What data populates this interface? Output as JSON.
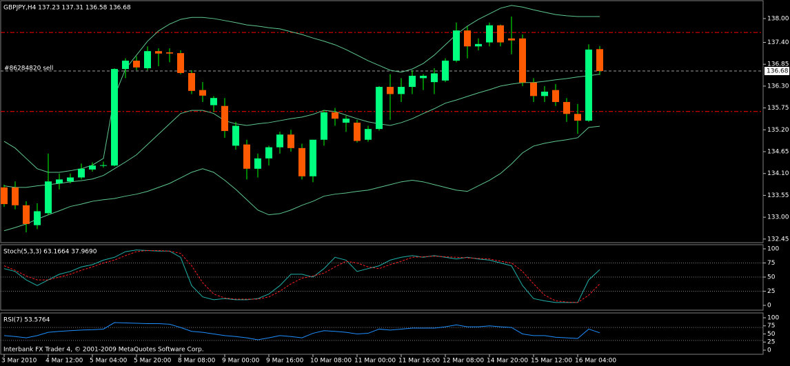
{
  "chart_data": [
    {
      "type": "candlestick",
      "title": "GBPJPY,H4  137.23 137.31 136.58 136.68",
      "up_color": "#00ff7f",
      "down_color": "#ff5a00",
      "wick_color": "#00ff00",
      "open": [
        133.75,
        133.75,
        133.3,
        132.8,
        133.1,
        133.85,
        133.9,
        134.0,
        134.2,
        134.3,
        134.3,
        136.73,
        136.94,
        136.75,
        137.18,
        137.15,
        137.13,
        136.63,
        136.2,
        135.82,
        135.8,
        134.8,
        134.83,
        134.22,
        134.48,
        134.76,
        135.08,
        134.74,
        134.03,
        134.95,
        135.64,
        135.38,
        135.38,
        134.95,
        135.22,
        136.28,
        136.1,
        136.28,
        136.5,
        136.4,
        136.44,
        136.94,
        137.7,
        137.3,
        137.4,
        137.83,
        137.5,
        137.5,
        136.39,
        136.05,
        136.2,
        135.9,
        135.6,
        135.43,
        137.23
      ],
      "high": [
        133.82,
        133.9,
        133.4,
        133.35,
        134.6,
        134.1,
        134.1,
        134.35,
        134.38,
        134.4,
        136.75,
        137.0,
        137.05,
        137.3,
        137.25,
        137.25,
        137.2,
        136.7,
        136.4,
        136.05,
        136.0,
        135.4,
        134.95,
        134.6,
        134.8,
        135.15,
        135.2,
        134.85,
        134.95,
        135.7,
        135.75,
        135.55,
        135.45,
        135.3,
        136.3,
        136.6,
        136.5,
        136.7,
        136.6,
        136.75,
        137.0,
        137.9,
        137.8,
        137.5,
        137.9,
        137.85,
        138.05,
        137.6,
        136.5,
        136.3,
        136.35,
        136.0,
        135.85,
        137.35,
        137.31
      ],
      "low": [
        133.26,
        133.2,
        132.62,
        132.7,
        133.05,
        133.7,
        133.85,
        133.95,
        134.15,
        134.25,
        134.28,
        136.5,
        136.7,
        136.7,
        136.8,
        136.9,
        136.6,
        136.1,
        135.9,
        135.65,
        135.0,
        134.7,
        133.95,
        134.0,
        134.3,
        134.6,
        134.65,
        133.95,
        133.88,
        134.8,
        135.3,
        135.15,
        134.88,
        134.9,
        135.18,
        135.45,
        135.9,
        136.1,
        136.2,
        136.1,
        136.4,
        136.9,
        137.0,
        137.2,
        137.3,
        137.3,
        137.1,
        136.3,
        135.9,
        135.9,
        135.8,
        135.4,
        135.1,
        135.4,
        136.58
      ],
      "close": [
        133.33,
        133.3,
        132.83,
        133.15,
        133.9,
        133.95,
        134.0,
        134.22,
        134.3,
        134.31,
        136.73,
        136.94,
        136.77,
        137.18,
        137.12,
        137.12,
        136.63,
        136.18,
        136.06,
        136.0,
        135.17,
        135.3,
        134.22,
        134.48,
        134.76,
        135.08,
        134.74,
        134.03,
        134.95,
        135.64,
        135.48,
        135.48,
        134.92,
        135.22,
        136.28,
        136.1,
        136.28,
        136.56,
        136.56,
        136.62,
        136.94,
        137.7,
        137.3,
        137.36,
        137.83,
        137.4,
        137.45,
        136.39,
        136.05,
        136.16,
        135.9,
        135.6,
        135.43,
        137.22,
        136.68
      ],
      "series": [
        {
          "color": "#5fc88f",
          "values": [
            134.91,
            134.74,
            134.48,
            134.22,
            134.13,
            134.13,
            134.17,
            134.22,
            134.31,
            134.48,
            136.04,
            136.73,
            137.08,
            137.43,
            137.69,
            137.86,
            137.98,
            138.03,
            138.03,
            138.0,
            137.95,
            137.9,
            137.84,
            137.81,
            137.77,
            137.74,
            137.67,
            137.6,
            137.51,
            137.43,
            137.34,
            137.22,
            137.08,
            136.94,
            136.82,
            136.7,
            136.65,
            136.73,
            136.87,
            137.08,
            137.34,
            137.6,
            137.81,
            137.98,
            138.12,
            138.26,
            138.33,
            138.29,
            138.22,
            138.16,
            138.1,
            138.07,
            138.05,
            138.05,
            138.05
          ]
        },
        {
          "color": "#5fc88f",
          "values": [
            133.79,
            133.75,
            133.75,
            133.79,
            133.82,
            133.85,
            133.89,
            133.92,
            133.96,
            134.05,
            134.22,
            134.39,
            134.57,
            134.83,
            135.09,
            135.35,
            135.61,
            135.69,
            135.69,
            135.61,
            135.43,
            135.35,
            135.31,
            135.35,
            135.38,
            135.43,
            135.48,
            135.52,
            135.59,
            135.69,
            135.66,
            135.57,
            135.48,
            135.4,
            135.35,
            135.31,
            135.38,
            135.48,
            135.61,
            135.73,
            135.87,
            135.95,
            136.04,
            136.13,
            136.21,
            136.3,
            136.35,
            136.39,
            136.39,
            136.42,
            136.46,
            136.49,
            136.53,
            136.56,
            136.6
          ]
        },
        {
          "color": "#5fc88f",
          "values": [
            132.66,
            132.74,
            132.83,
            132.95,
            133.06,
            133.16,
            133.27,
            133.33,
            133.4,
            133.44,
            133.47,
            133.53,
            133.58,
            133.65,
            133.75,
            133.85,
            133.99,
            134.13,
            134.22,
            134.13,
            133.93,
            133.7,
            133.44,
            133.18,
            133.06,
            133.09,
            133.18,
            133.3,
            133.4,
            133.53,
            133.58,
            133.61,
            133.65,
            133.68,
            133.75,
            133.82,
            133.89,
            133.93,
            133.89,
            133.82,
            133.75,
            133.68,
            133.65,
            133.79,
            133.93,
            134.1,
            134.34,
            134.62,
            134.79,
            134.86,
            134.91,
            134.95,
            135.0,
            135.26,
            135.29
          ]
        }
      ],
      "hlines": [
        {
          "value": 137.65,
          "color": "#ff0000",
          "dash": "6 3 2 3"
        },
        {
          "value": 135.66,
          "color": "#ff0000",
          "dash": "6 3 2 3"
        },
        {
          "value": 136.68,
          "color": "#a0a0a0",
          "dash": "4 3",
          "label": "#86284820 sell"
        }
      ],
      "price_label": 136.68,
      "ylim": [
        132.36,
        138.45
      ],
      "yticks": [
        {
          "value": 138,
          "label": "138.00"
        },
        {
          "value": 137.4,
          "label": "137.40"
        },
        136.85,
        {
          "value": 136.3,
          "label": "136.30"
        },
        135.75,
        {
          "value": 135.2,
          "label": "135.20"
        },
        134.65,
        {
          "value": 134.1,
          "label": "134.10"
        },
        133.55,
        {
          "value": 133,
          "label": "133.00"
        },
        132.45
      ]
    },
    {
      "type": "line",
      "title": "Stoch(5,3,3) 63.1664 37.9690",
      "series": [
        {
          "color": "#20b2aa",
          "values": [
            65,
            60,
            45,
            35,
            45,
            55,
            60,
            68,
            72,
            80,
            85,
            95,
            98,
            97,
            96,
            96,
            85,
            35,
            15,
            10,
            12,
            10,
            10,
            12,
            20,
            35,
            55,
            55,
            50,
            65,
            85,
            80,
            60,
            65,
            70,
            80,
            85,
            88,
            85,
            88,
            85,
            82,
            85,
            82,
            80,
            75,
            70,
            35,
            12,
            8,
            5,
            5,
            5,
            45,
            63.1664
          ]
        },
        {
          "color": "#ff2020",
          "dash": "3 2",
          "values": [
            70,
            62,
            52,
            45,
            45,
            50,
            55,
            62,
            68,
            75,
            80,
            88,
            95,
            97,
            97,
            96,
            92,
            70,
            40,
            20,
            13,
            11,
            11,
            11,
            15,
            25,
            38,
            48,
            52,
            57,
            68,
            78,
            75,
            68,
            65,
            72,
            78,
            85,
            86,
            87,
            86,
            85,
            84,
            83,
            82,
            78,
            75,
            60,
            38,
            18,
            8,
            6,
            5,
            18,
            37.969
          ]
        }
      ],
      "levels": [
        75,
        50,
        25
      ],
      "ylim": [
        -8.5,
        107.3
      ],
      "yticks": [
        100,
        75,
        50,
        25,
        0
      ]
    },
    {
      "type": "line",
      "title": "RSI(7) 53.5764",
      "series": [
        {
          "color": "#1e90ff",
          "values": [
            45,
            42,
            38,
            45,
            55,
            58,
            60,
            62,
            63,
            65,
            85,
            84,
            83,
            82,
            82,
            80,
            70,
            58,
            55,
            50,
            45,
            42,
            38,
            32,
            38,
            45,
            42,
            38,
            52,
            60,
            58,
            55,
            50,
            52,
            65,
            62,
            65,
            68,
            68,
            68,
            72,
            78,
            72,
            72,
            75,
            72,
            70,
            50,
            45,
            45,
            40,
            38,
            36,
            65,
            53.5764
          ]
        }
      ],
      "levels": [
        70,
        30
      ],
      "ylim": [
        -12.8,
        114.9
      ],
      "yticks": [
        100,
        75,
        50,
        25,
        0
      ],
      "xticks": [
        {
          "value": 0,
          "label": "3 Mar 2010"
        },
        {
          "value": 4,
          "label": "4 Mar 12:00"
        },
        {
          "value": 8,
          "label": "5 Mar 04:00"
        },
        {
          "value": 12,
          "label": "5 Mar 20:00"
        },
        {
          "value": 16,
          "label": "8 Mar 08:00"
        },
        {
          "value": 20,
          "label": "9 Mar 00:00"
        },
        {
          "value": 24,
          "label": "9 Mar 16:00"
        },
        {
          "value": 28,
          "label": "10 Mar 08:00"
        },
        {
          "value": 32,
          "label": "11 Mar 00:00"
        },
        {
          "value": 36,
          "label": "11 Mar 16:00"
        },
        {
          "value": 40,
          "label": "12 Mar 08:00"
        },
        {
          "value": 44,
          "label": "14 Mar 20:00"
        },
        {
          "value": 48,
          "label": "15 Mar 12:00"
        },
        {
          "value": 52,
          "label": "16 Mar 04:00"
        }
      ],
      "footer": "Interbank FX Trader 4, © 2001-2009 MetaQuotes Software Corp."
    }
  ]
}
